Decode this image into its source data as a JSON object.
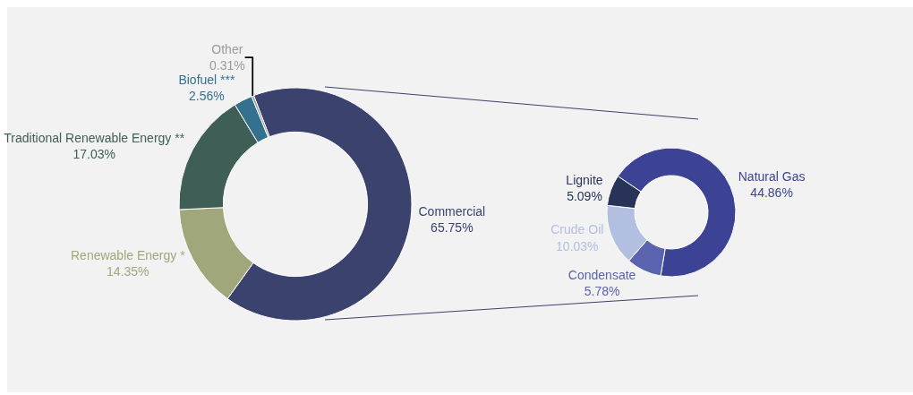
{
  "chart_data": [
    {
      "type": "donut",
      "categories": [
        "Commercial",
        "Renewable Energy *",
        "Traditional Renewable Energy **",
        "Biofuel ***",
        "Other"
      ],
      "values": [
        65.75,
        14.35,
        17.03,
        2.56,
        0.31
      ],
      "value_labels": [
        "65.75%",
        "14.35%",
        "17.03%",
        "2.56%",
        "0.31%"
      ],
      "colors": [
        "#3b426e",
        "#a0a77a",
        "#3e5e56",
        "#33718f",
        "#9a9a9a"
      ],
      "legend": false
    },
    {
      "type": "donut",
      "categories": [
        "Natural Gas",
        "Condensate",
        "Crude Oil",
        "Lignite"
      ],
      "values": [
        44.86,
        5.78,
        10.03,
        5.09
      ],
      "value_labels": [
        "44.86%",
        "5.78%",
        "10.03%",
        "5.09%"
      ],
      "colors": [
        "#3d4394",
        "#5a63ad",
        "#b3bfe0",
        "#283457"
      ],
      "legend": false
    }
  ]
}
